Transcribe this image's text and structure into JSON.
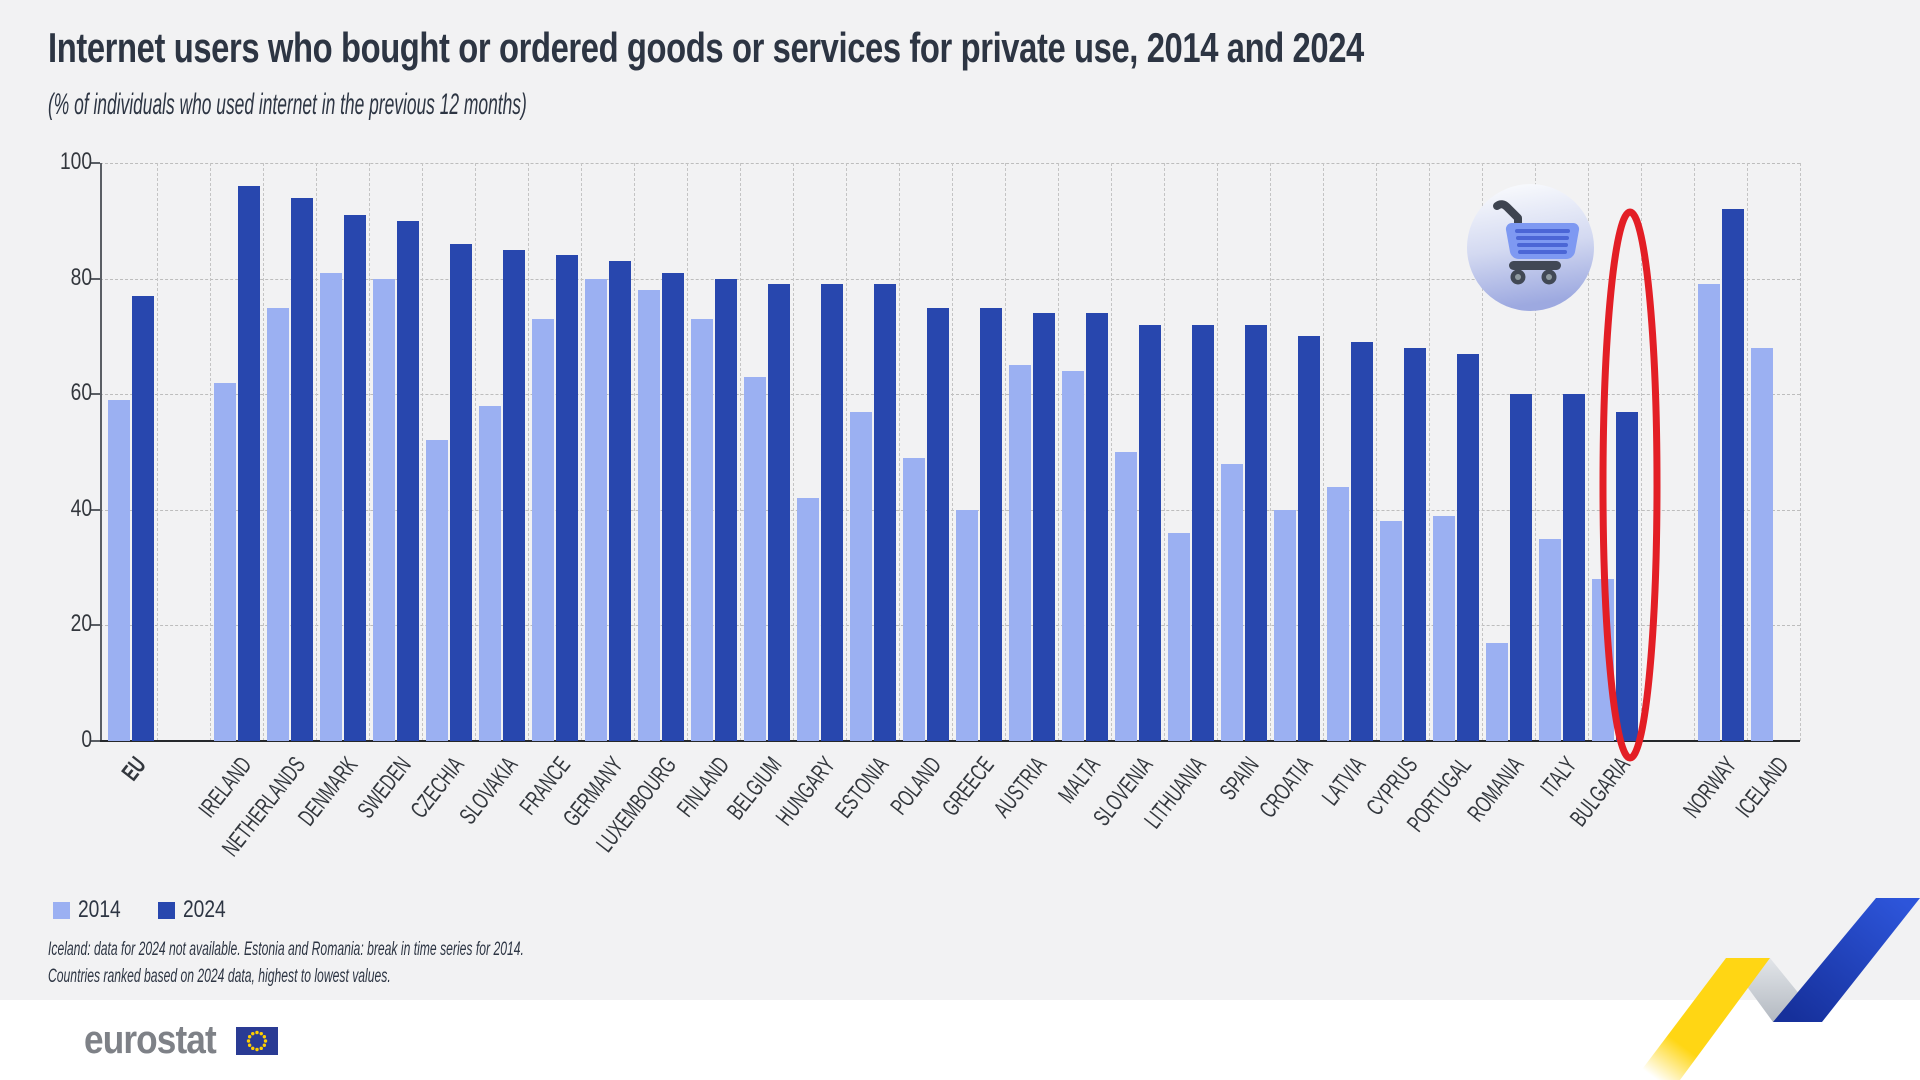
{
  "page": {
    "background": "#f2f2f3",
    "footer_background": "#ffffff"
  },
  "header": {
    "title": "Internet users who bought or ordered goods or services for private use, 2014 and 2024",
    "subtitle": "(% of individuals who used internet in the previous 12 months)"
  },
  "legend": {
    "items": [
      {
        "label": "2014",
        "color": "#9bb0f2"
      },
      {
        "label": "2024",
        "color": "#2847ae"
      }
    ]
  },
  "footnotes": [
    "Iceland: data for 2024 not available. Estonia and Romania: break in time series for 2014.",
    "Countries ranked based on 2024 data, highest to lowest values.",
    ""
  ],
  "branding": {
    "logo_text": "eurostat",
    "logo_color": "#7e8187",
    "flag_color": "#2a3b94",
    "star_color": "#ffcf00"
  },
  "decorations": {
    "cart_icon": "shopping-cart-icon in gradient circle badge",
    "highlight": "red ellipse drawn around the BULGARIA 2024 bar",
    "ribbon": "yellow-gray-blue zigzag ribbon, bottom right corner"
  },
  "chart_data": {
    "type": "bar",
    "unit": "%",
    "ylim": [
      0,
      100
    ],
    "yticks": [
      0,
      20,
      40,
      60,
      80,
      100
    ],
    "grid": "dashed",
    "legend_position": "bottom-left",
    "series_names": [
      "2014",
      "2024"
    ],
    "colors": {
      "2014": "#9bb0f2",
      "2024": "#2847ae",
      "highlight": "#e31e25"
    },
    "countries": [
      {
        "name": "EU",
        "y2014": 59,
        "y2024": 77,
        "slot": 0,
        "bold": true
      },
      {
        "name": "IRELAND",
        "y2014": 62,
        "y2024": 96,
        "slot": 2
      },
      {
        "name": "NETHERLANDS",
        "y2014": 75,
        "y2024": 94,
        "slot": 3
      },
      {
        "name": "DENMARK",
        "y2014": 81,
        "y2024": 91,
        "slot": 4
      },
      {
        "name": "SWEDEN",
        "y2014": 80,
        "y2024": 90,
        "slot": 5
      },
      {
        "name": "CZECHIA",
        "y2014": 52,
        "y2024": 86,
        "slot": 6
      },
      {
        "name": "SLOVAKIA",
        "y2014": 58,
        "y2024": 85,
        "slot": 7
      },
      {
        "name": "FRANCE",
        "y2014": 73,
        "y2024": 84,
        "slot": 8
      },
      {
        "name": "GERMANY",
        "y2014": 80,
        "y2024": 83,
        "slot": 9
      },
      {
        "name": "LUXEMBOURG",
        "y2014": 78,
        "y2024": 81,
        "slot": 10
      },
      {
        "name": "FINLAND",
        "y2014": 73,
        "y2024": 80,
        "slot": 11
      },
      {
        "name": "BELGIUM",
        "y2014": 63,
        "y2024": 79,
        "slot": 12
      },
      {
        "name": "HUNGARY",
        "y2014": 42,
        "y2024": 79,
        "slot": 13
      },
      {
        "name": "ESTONIA",
        "y2014": 57,
        "y2024": 79,
        "slot": 14
      },
      {
        "name": "POLAND",
        "y2014": 49,
        "y2024": 75,
        "slot": 15
      },
      {
        "name": "GREECE",
        "y2014": 40,
        "y2024": 75,
        "slot": 16
      },
      {
        "name": "AUSTRIA",
        "y2014": 65,
        "y2024": 74,
        "slot": 17
      },
      {
        "name": "MALTA",
        "y2014": 64,
        "y2024": 74,
        "slot": 18
      },
      {
        "name": "SLOVENIA",
        "y2014": 50,
        "y2024": 72,
        "slot": 19
      },
      {
        "name": "LITHUANIA",
        "y2014": 36,
        "y2024": 72,
        "slot": 20
      },
      {
        "name": "SPAIN",
        "y2014": 48,
        "y2024": 72,
        "slot": 21
      },
      {
        "name": "CROATIA",
        "y2014": 40,
        "y2024": 70,
        "slot": 22
      },
      {
        "name": "LATVIA",
        "y2014": 44,
        "y2024": 69,
        "slot": 23
      },
      {
        "name": "CYPRUS",
        "y2014": 38,
        "y2024": 68,
        "slot": 24
      },
      {
        "name": "PORTUGAL",
        "y2014": 39,
        "y2024": 67,
        "slot": 25
      },
      {
        "name": "ROMANIA",
        "y2014": 17,
        "y2024": 60,
        "slot": 26
      },
      {
        "name": "ITALY",
        "y2014": 35,
        "y2024": 60,
        "slot": 27
      },
      {
        "name": "BULGARIA",
        "y2014": 28,
        "y2024": 57,
        "slot": 28,
        "circled_2024": true
      },
      {
        "name": "NORWAY",
        "y2014": 79,
        "y2024": 92,
        "slot": 30
      },
      {
        "name": "ICELAND",
        "y2014": 68,
        "y2024": null,
        "slot": 31
      }
    ]
  }
}
